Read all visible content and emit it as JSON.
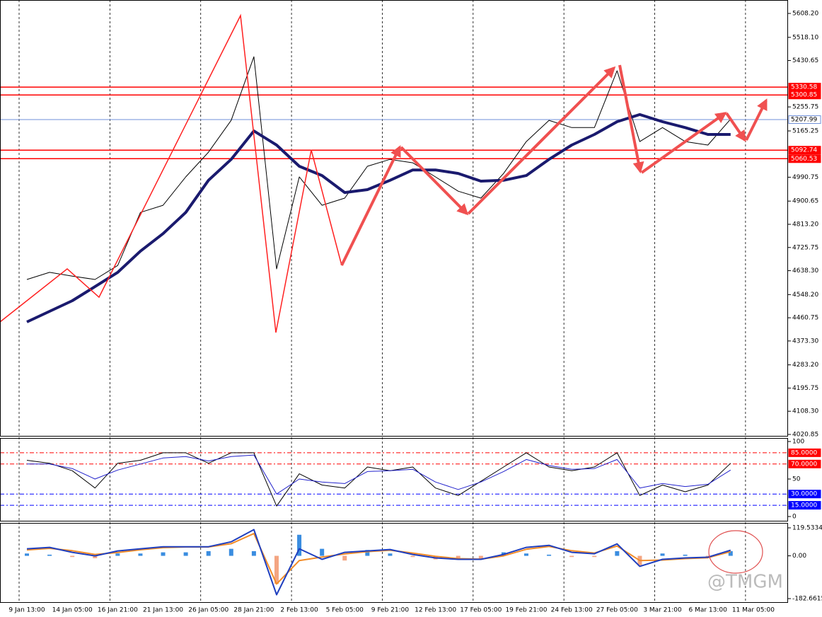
{
  "chart_data": [
    {
      "type": "line",
      "ylim": [
        4012.8,
        5658.9
      ],
      "yticks": [
        {
          "value": 5608.2,
          "label": "5608.20"
        },
        {
          "value": 5518.1,
          "label": "5518.10"
        },
        {
          "value": 5430.65,
          "label": "5430.65"
        },
        {
          "value": 5255.75,
          "label": "5255.75"
        },
        {
          "value": 5165.25,
          "label": "5165.25"
        },
        {
          "value": 4990.75,
          "label": "4990.75"
        },
        {
          "value": 4900.65,
          "label": "4900.65"
        },
        {
          "value": 4813.2,
          "label": "4813.20"
        },
        {
          "value": 4725.75,
          "label": "4725.75"
        },
        {
          "value": 4638.3,
          "label": "4638.30"
        },
        {
          "value": 4548.2,
          "label": "4548.20"
        },
        {
          "value": 4460.75,
          "label": "4460.75"
        },
        {
          "value": 4373.3,
          "label": "4373.30"
        },
        {
          "value": 4283.2,
          "label": "4283.20"
        },
        {
          "value": 4195.75,
          "label": "4195.75"
        },
        {
          "value": 4108.3,
          "label": "4108.30"
        },
        {
          "value": 4020.85,
          "label": "4020.85"
        }
      ],
      "levels": [
        {
          "value": 5330.58,
          "color": "#ff0000"
        },
        {
          "value": 5300.85,
          "color": "#ff0000"
        },
        {
          "value": 5207.99,
          "color": "#6f8fd8"
        },
        {
          "value": 5092.74,
          "color": "#ff0000"
        },
        {
          "value": 5060.53,
          "color": "#ff0000"
        }
      ],
      "series": [
        {
          "color": "#000000",
          "width": 1,
          "values": [
            4605,
            4632,
            4618,
            4605,
            4658,
            4858,
            4885,
            4992,
            5085,
            5205,
            5445,
            4645,
            4992,
            4885,
            4912,
            5032,
            5058,
            5045,
            4992,
            4938,
            4912,
            5005,
            5125,
            5205,
            5178,
            5178,
            5392,
            5125,
            5178,
            5125,
            5112,
            5210,
            null
          ]
        },
        {
          "color": "#1a1a6e",
          "width": 4,
          "values": [
            4445,
            4485,
            4525,
            4578,
            4632,
            4712,
            4778,
            4858,
            4979,
            5058,
            5165,
            5112,
            5032,
            4997,
            4933,
            4944,
            4979,
            5018,
            5018,
            5005,
            4976,
            4979,
            4997,
            5058,
            5112,
            5152,
            5200,
            5227,
            5200,
            5178,
            5152,
            5152,
            null
          ]
        }
      ]
    },
    {
      "type": "line",
      "ylim": [
        -6.6,
        104.7
      ],
      "yticks": [
        100,
        50,
        0
      ],
      "levels": [
        {
          "value": 85,
          "label": "85.0000",
          "color": "#ff0000"
        },
        {
          "value": 70,
          "label": "70.0000",
          "color": "#ff0000"
        },
        {
          "value": 30,
          "label": "30.0000",
          "color": "#0000ff"
        },
        {
          "value": 15,
          "label": "15.0000",
          "color": "#0000ff"
        }
      ],
      "series": [
        {
          "color": "#000000",
          "width": 1,
          "values": [
            75,
            71,
            61,
            38,
            71,
            75,
            85,
            85,
            71,
            85,
            85,
            14,
            57,
            42,
            38,
            66,
            61,
            66,
            38,
            28,
            47,
            66,
            85,
            66,
            61,
            66,
            85,
            28,
            42,
            33,
            42,
            71,
            null
          ]
        },
        {
          "color": "#2222cc",
          "width": 1,
          "values": [
            70,
            70,
            64,
            50,
            62,
            70,
            78,
            80,
            74,
            80,
            82,
            30,
            50,
            46,
            44,
            60,
            61,
            63,
            46,
            36,
            46,
            60,
            76,
            68,
            63,
            64,
            76,
            38,
            44,
            40,
            43,
            62,
            null
          ]
        }
      ]
    },
    {
      "type": "line",
      "ylim": [
        -200.8,
        140.7
      ],
      "yticks": [
        119.5334,
        {
          "value": 0,
          "label": "0.00"
        },
        -182.6615
      ],
      "categories": [
        "9 Jan 13:00",
        null,
        "14 Jan 05:00",
        null,
        "16 Jan 21:00",
        null,
        "21 Jan 13:00",
        null,
        "26 Jan 05:00",
        null,
        "28 Jan 21:00",
        null,
        "2 Feb 13:00",
        null,
        "5 Feb 05:00",
        null,
        "9 Feb 21:00",
        null,
        "12 Feb 13:00",
        null,
        "17 Feb 05:00",
        null,
        "19 Feb 21:00",
        null,
        "24 Feb 13:00",
        null,
        "27 Feb 05:00",
        null,
        "3 Mar 21:00",
        null,
        "6 Mar 13:00",
        null,
        "11 Mar 05:00"
      ],
      "grid": true,
      "watermark": "@TMGM",
      "series": [
        {
          "type": "bar",
          "color": "#3a8de0",
          "negative_color": "#f4a582",
          "values": [
            10,
            5,
            -5,
            -10,
            10,
            10,
            15,
            15,
            20,
            30,
            20,
            -120,
            90,
            30,
            -20,
            25,
            10,
            -5,
            -15,
            -10,
            -15,
            15,
            10,
            5,
            -5,
            -5,
            20,
            -40,
            10,
            5,
            -5,
            20,
            null
          ]
        },
        {
          "type": "line",
          "color": "#f28c28",
          "width": 2,
          "values": [
            25,
            32,
            22,
            6,
            14,
            26,
            35,
            38,
            38,
            52,
            95,
            -120,
            -20,
            -5,
            8,
            18,
            24,
            12,
            -2,
            -12,
            -14,
            0,
            28,
            40,
            22,
            12,
            42,
            -20,
            -18,
            -12,
            -8,
            18,
            null
          ]
        },
        {
          "type": "line",
          "color": "#1f3fbf",
          "width": 2,
          "values": [
            30,
            36,
            15,
            0,
            21,
            30,
            39,
            39,
            39,
            60,
            112,
            -166,
            30,
            -15,
            15,
            21,
            27,
            6,
            -9,
            -15,
            -15,
            6,
            36,
            45,
            15,
            9,
            51,
            -45,
            -15,
            -9,
            -6,
            24,
            null
          ]
        }
      ]
    }
  ]
}
